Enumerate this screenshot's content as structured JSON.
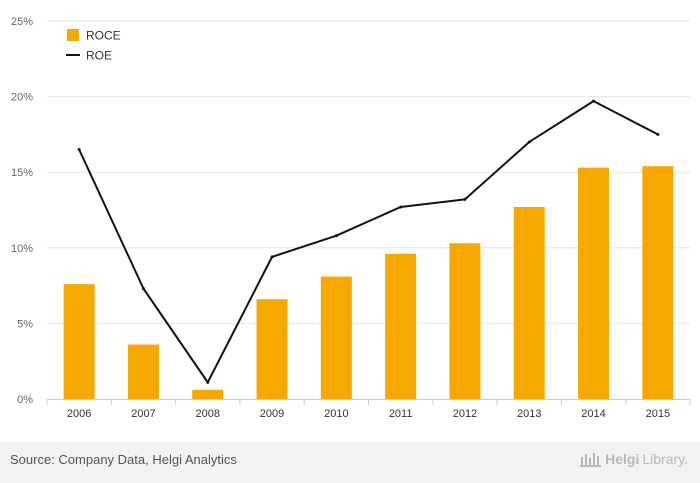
{
  "colors": {
    "bar": "#F7A800",
    "line": "#111111",
    "grid": "#e6e6e6",
    "tick": "#666666"
  },
  "chart_data": {
    "type": "bar",
    "categories": [
      "2006",
      "2007",
      "2008",
      "2009",
      "2010",
      "2011",
      "2012",
      "2013",
      "2014",
      "2015"
    ],
    "series": [
      {
        "name": "ROCE",
        "type": "bar",
        "values": [
          7.6,
          3.6,
          0.6,
          6.6,
          8.1,
          9.6,
          10.3,
          12.7,
          15.3,
          15.4
        ]
      },
      {
        "name": "ROE",
        "type": "line",
        "values": [
          16.5,
          7.3,
          1.1,
          9.4,
          10.8,
          12.7,
          13.2,
          17.0,
          19.7,
          17.5
        ]
      }
    ],
    "ylim": [
      0,
      25
    ],
    "yticks": [
      "0%",
      "5%",
      "10%",
      "15%",
      "20%",
      "25%"
    ],
    "legend": "top-left",
    "grid": true
  },
  "footer": {
    "source": "Source: Company Data, Helgi Analytics",
    "brand_main": "Helgi",
    "brand_sub": "Library."
  }
}
